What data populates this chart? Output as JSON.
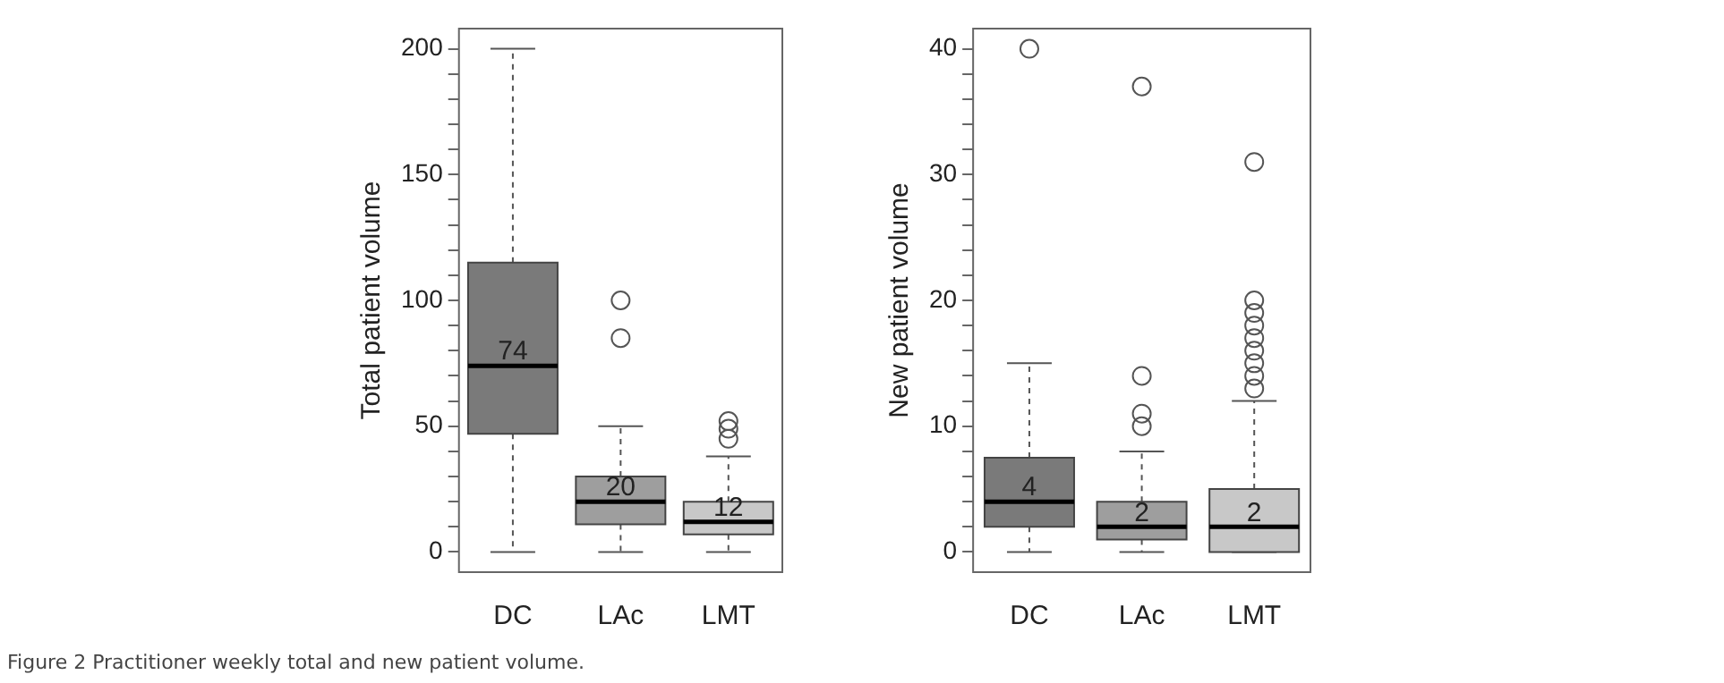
{
  "chart_data": [
    {
      "type": "box",
      "ylabel": "Total patient volume",
      "categories": [
        "DC",
        "LAc",
        "LMT"
      ],
      "colors": [
        "#7a7a7a",
        "#9e9e9e",
        "#c8c8c8"
      ],
      "boxes": [
        {
          "low": 0,
          "q1": 47,
          "median": 74,
          "q3": 115,
          "high": 200
        },
        {
          "low": 0,
          "q1": 11,
          "median": 20,
          "q3": 30,
          "high": 50,
          "outliers": [
            85,
            100
          ]
        },
        {
          "low": 0,
          "q1": 7,
          "median": 12,
          "q3": 20,
          "high": 38,
          "outliers": [
            45,
            49,
            52
          ]
        }
      ],
      "value_labels": [
        "74",
        "20",
        "12"
      ],
      "ylim": [
        -8,
        208
      ],
      "yticks": [
        0,
        {
          "value": 10,
          "label": null
        },
        {
          "value": 20,
          "label": null
        },
        {
          "value": 30,
          "label": null
        },
        {
          "value": 40,
          "label": null
        },
        50,
        {
          "value": 60,
          "label": null
        },
        {
          "value": 70,
          "label": null
        },
        {
          "value": 80,
          "label": null
        },
        {
          "value": 90,
          "label": null
        },
        100,
        {
          "value": 110,
          "label": null
        },
        {
          "value": 120,
          "label": null
        },
        {
          "value": 130,
          "label": null
        },
        {
          "value": 140,
          "label": null
        },
        150,
        {
          "value": 160,
          "label": null
        },
        {
          "value": 170,
          "label": null
        },
        {
          "value": 180,
          "label": null
        },
        {
          "value": 190,
          "label": null
        },
        200
      ],
      "grid": false,
      "legend": false,
      "marker": "circle",
      "annotations": [
        "Figure 2 Practitioner weekly total and new patient volume."
      ]
    },
    {
      "type": "box",
      "ylabel": "New patient volume",
      "categories": [
        "DC",
        "LAc",
        "LMT"
      ],
      "colors": [
        "#7a7a7a",
        "#9e9e9e",
        "#c8c8c8"
      ],
      "boxes": [
        {
          "low": 0,
          "q1": 2,
          "median": 4,
          "q3": 7.5,
          "high": 15,
          "outliers": [
            40
          ]
        },
        {
          "low": 0,
          "q1": 1,
          "median": 2,
          "q3": 4,
          "high": 8,
          "outliers": [
            10,
            11,
            14,
            37
          ]
        },
        {
          "low": 0,
          "q1": 0,
          "median": 2,
          "q3": 5,
          "high": 12,
          "outliers": [
            13,
            14,
            15,
            16,
            17,
            18,
            19,
            20,
            31
          ]
        }
      ],
      "value_labels": [
        "4",
        "2",
        "2"
      ],
      "ylim": [
        -1.6,
        41.6
      ],
      "yticks": [
        0,
        {
          "value": 2,
          "label": null
        },
        {
          "value": 4,
          "label": null
        },
        {
          "value": 6,
          "label": null
        },
        {
          "value": 8,
          "label": null
        },
        10,
        {
          "value": 12,
          "label": null
        },
        {
          "value": 14,
          "label": null
        },
        {
          "value": 16,
          "label": null
        },
        {
          "value": 18,
          "label": null
        },
        20,
        {
          "value": 22,
          "label": null
        },
        {
          "value": 24,
          "label": null
        },
        {
          "value": 26,
          "label": null
        },
        {
          "value": 28,
          "label": null
        },
        30,
        {
          "value": 32,
          "label": null
        },
        {
          "value": 34,
          "label": null
        },
        {
          "value": 36,
          "label": null
        },
        {
          "value": 38,
          "label": null
        },
        40
      ],
      "grid": false,
      "legend": false,
      "marker": "circle"
    }
  ]
}
